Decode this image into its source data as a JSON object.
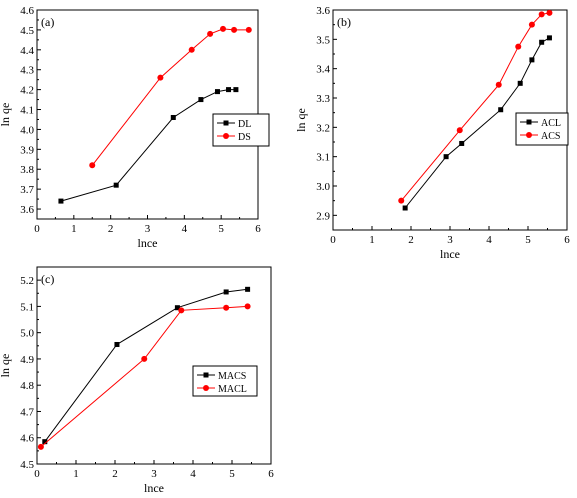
{
  "chart_data": [
    {
      "type": "line",
      "panel_label": "(a)",
      "xlabel": "lnce",
      "ylabel": "ln qe",
      "xlim": [
        0,
        6
      ],
      "ylim": [
        3.55,
        4.6
      ],
      "xticks": [
        0,
        1,
        2,
        3,
        4,
        5,
        6
      ],
      "yticks": [
        3.6,
        3.7,
        3.8,
        3.9,
        4.0,
        4.1,
        4.2,
        4.3,
        4.4,
        4.5,
        4.6
      ],
      "ytick_labels": [
        "3.6",
        "3.7",
        "3.8",
        "3.9",
        "4.0",
        "4.1",
        "4.2",
        "4.3",
        "4.4",
        "4.5",
        "4.6"
      ],
      "legend_position": "right",
      "series": [
        {
          "name": "DL",
          "color": "#000000",
          "marker": "square",
          "x": [
            0.65,
            2.15,
            3.7,
            4.45,
            4.9,
            5.2,
            5.4
          ],
          "y": [
            3.64,
            3.72,
            4.06,
            4.15,
            4.19,
            4.2,
            4.2
          ]
        },
        {
          "name": "DS",
          "color": "#ff0000",
          "marker": "circle",
          "x": [
            1.5,
            3.35,
            4.2,
            4.7,
            5.05,
            5.35,
            5.75
          ],
          "y": [
            3.82,
            4.26,
            4.4,
            4.48,
            4.505,
            4.5,
            4.5
          ]
        }
      ]
    },
    {
      "type": "line",
      "panel_label": "(b)",
      "xlabel": "lnce",
      "ylabel": "ln qe",
      "xlim": [
        0,
        6
      ],
      "ylim": [
        2.85,
        3.6
      ],
      "xticks": [
        0,
        1,
        2,
        3,
        4,
        5,
        6
      ],
      "yticks": [
        2.9,
        3.0,
        3.1,
        3.2,
        3.3,
        3.4,
        3.5,
        3.6
      ],
      "ytick_labels": [
        "2.9",
        "3.0",
        "3.1",
        "3.2",
        "3.3",
        "3.4",
        "3.5",
        "3.6"
      ],
      "legend_position": "right",
      "series": [
        {
          "name": "ACL",
          "color": "#000000",
          "marker": "square",
          "x": [
            1.85,
            2.9,
            3.3,
            4.3,
            4.8,
            5.1,
            5.35,
            5.55
          ],
          "y": [
            2.925,
            3.1,
            3.145,
            3.26,
            3.35,
            3.43,
            3.49,
            3.505
          ]
        },
        {
          "name": "ACS",
          "color": "#ff0000",
          "marker": "circle",
          "x": [
            1.75,
            3.25,
            4.25,
            4.75,
            5.1,
            5.35,
            5.55
          ],
          "y": [
            2.95,
            3.19,
            3.345,
            3.475,
            3.55,
            3.585,
            3.59
          ]
        }
      ]
    },
    {
      "type": "line",
      "panel_label": "(c)",
      "xlabel": "lnce",
      "ylabel": "ln qe",
      "xlim": [
        0,
        6
      ],
      "ylim": [
        4.5,
        5.25
      ],
      "xticks": [
        0,
        1,
        2,
        3,
        4,
        5,
        6
      ],
      "yticks": [
        4.5,
        4.6,
        4.7,
        4.8,
        4.9,
        5.0,
        5.1,
        5.2
      ],
      "ytick_labels": [
        "4.5",
        "4.6",
        "4.7",
        "4.8",
        "4.9",
        "5.0",
        "5.1",
        "5.2"
      ],
      "legend_position": "right",
      "series": [
        {
          "name": "MACS",
          "color": "#000000",
          "marker": "square",
          "x": [
            0.2,
            2.05,
            3.6,
            4.85,
            5.4
          ],
          "y": [
            4.585,
            4.955,
            5.095,
            5.155,
            5.165
          ]
        },
        {
          "name": "MACL",
          "color": "#ff0000",
          "marker": "circle",
          "x": [
            0.1,
            2.75,
            3.7,
            4.85,
            5.4
          ],
          "y": [
            4.565,
            4.9,
            5.085,
            5.095,
            5.1
          ]
        }
      ]
    }
  ]
}
